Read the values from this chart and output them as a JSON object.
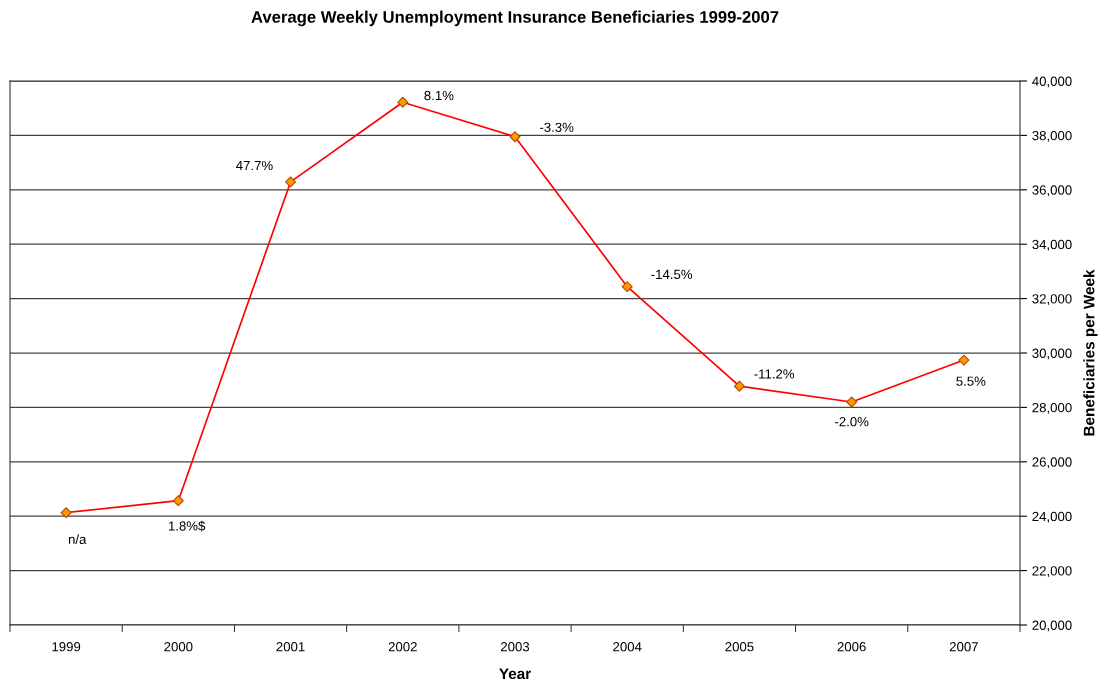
{
  "chart_data": {
    "type": "line",
    "title": "Average Weekly Unemployment Insurance Beneficiaries 1999-2007",
    "xlabel": "Year",
    "ylabel": "Beneficiaries per Week",
    "categories": [
      "1999",
      "2000",
      "2001",
      "2002",
      "2003",
      "2004",
      "2005",
      "2006",
      "2007"
    ],
    "series": [
      {
        "color": "#ff0000",
        "values": [
          24130,
          24570,
          36290,
          39220,
          37950,
          32440,
          28780,
          28200,
          29740
        ]
      }
    ],
    "marker": "diamond",
    "line_style": "solid",
    "grid": "y",
    "ylim": [
      20000,
      40000
    ],
    "yticks": [
      {
        "value": 20000,
        "label": "20,000"
      },
      {
        "value": 22000,
        "label": "22,000"
      },
      {
        "value": 24000,
        "label": "24,000"
      },
      {
        "value": 26000,
        "label": "26,000"
      },
      {
        "value": 28000,
        "label": "28,000"
      },
      {
        "value": 30000,
        "label": "30,000"
      },
      {
        "value": 32000,
        "label": "32,000"
      },
      {
        "value": 34000,
        "label": "34,000"
      },
      {
        "value": 36000,
        "label": "36,000"
      },
      {
        "value": 38000,
        "label": "38,000"
      },
      {
        "value": 40000,
        "label": "40,000"
      }
    ],
    "annotations": [
      {
        "text": "n/a",
        "x": "1999",
        "y": 24130
      },
      {
        "text": "1.8%$",
        "x": "2000",
        "y": 24570
      },
      {
        "text": "47.7%",
        "x": "2001",
        "y": 36290
      },
      {
        "text": "8.1%",
        "x": "2002",
        "y": 39220
      },
      {
        "text": "-3.3%",
        "x": "2003",
        "y": 37950
      },
      {
        "text": "-14.5%",
        "x": "2004",
        "y": 32440
      },
      {
        "text": "-11.2%",
        "x": "2005",
        "y": 28780
      },
      {
        "text": "-2.0%",
        "x": "2006",
        "y": 28200
      },
      {
        "text": "5.5%",
        "x": "2007",
        "y": 29740
      }
    ]
  }
}
